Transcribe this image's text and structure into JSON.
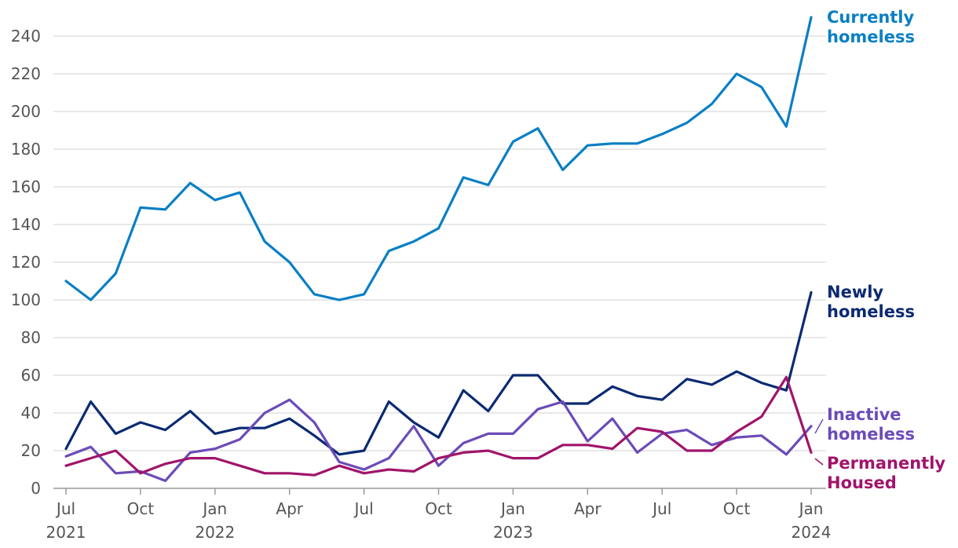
{
  "chart_data": {
    "type": "line",
    "title": "",
    "xlabel": "",
    "ylabel": "",
    "ylim": [
      0,
      250
    ],
    "yticks": [
      0,
      20,
      40,
      60,
      80,
      100,
      120,
      140,
      160,
      180,
      200,
      220,
      240
    ],
    "grid": "horizontal",
    "x": [
      "Jul 2021",
      "Aug 2021",
      "Sep 2021",
      "Oct 2021",
      "Nov 2021",
      "Dec 2021",
      "Jan 2022",
      "Feb 2022",
      "Mar 2022",
      "Apr 2022",
      "May 2022",
      "Jun 2022",
      "Jul 2022",
      "Aug 2022",
      "Sep 2022",
      "Oct 2022",
      "Nov 2022",
      "Dec 2022",
      "Jan 2023",
      "Feb 2023",
      "Mar 2023",
      "Apr 2023",
      "May 2023",
      "Jun 2023",
      "Jul 2023",
      "Aug 2023",
      "Sep 2023",
      "Oct 2023",
      "Nov 2023",
      "Dec 2023",
      "Jan 2024"
    ],
    "x_tick_labels": [
      {
        "month": "Jul",
        "year": "2021"
      },
      {
        "month": "Oct",
        "year": ""
      },
      {
        "month": "Jan",
        "year": "2022"
      },
      {
        "month": "Apr",
        "year": ""
      },
      {
        "month": "Jul",
        "year": ""
      },
      {
        "month": "Oct",
        "year": ""
      },
      {
        "month": "Jan",
        "year": "2023"
      },
      {
        "month": "Apr",
        "year": ""
      },
      {
        "month": "Jul",
        "year": ""
      },
      {
        "month": "Oct",
        "year": ""
      },
      {
        "month": "Jan",
        "year": "2024"
      }
    ],
    "series": [
      {
        "name": "Currently homeless",
        "label_lines": [
          "Currently",
          "homeless"
        ],
        "color": "#0a7fc4",
        "values": [
          110,
          100,
          114,
          149,
          148,
          162,
          153,
          157,
          131,
          120,
          103,
          100,
          103,
          126,
          131,
          138,
          165,
          161,
          184,
          191,
          169,
          182,
          183,
          183,
          188,
          194,
          204,
          220,
          213,
          192,
          250
        ]
      },
      {
        "name": "Newly homeless",
        "label_lines": [
          "Newly",
          "homeless"
        ],
        "color": "#0b2a72",
        "values": [
          21,
          46,
          29,
          35,
          31,
          41,
          29,
          32,
          32,
          37,
          28,
          18,
          20,
          46,
          35,
          27,
          52,
          41,
          60,
          60,
          45,
          45,
          54,
          49,
          47,
          58,
          55,
          62,
          56,
          52,
          104
        ]
      },
      {
        "name": "Inactive homeless",
        "label_lines": [
          "Inactive",
          "homeless"
        ],
        "color": "#6b4bb8",
        "values": [
          17,
          22,
          8,
          9,
          4,
          19,
          21,
          26,
          40,
          47,
          35,
          14,
          10,
          16,
          33,
          12,
          24,
          29,
          29,
          42,
          46,
          25,
          37,
          19,
          29,
          31,
          23,
          27,
          28,
          18,
          33
        ]
      },
      {
        "name": "Permanently Housed",
        "label_lines": [
          "Permanently",
          "Housed"
        ],
        "color": "#a0146a",
        "values": [
          12,
          16,
          20,
          8,
          13,
          16,
          16,
          12,
          8,
          8,
          7,
          12,
          8,
          10,
          9,
          16,
          19,
          20,
          16,
          16,
          23,
          23,
          21,
          32,
          30,
          20,
          20,
          30,
          38,
          59,
          19
        ]
      }
    ]
  }
}
